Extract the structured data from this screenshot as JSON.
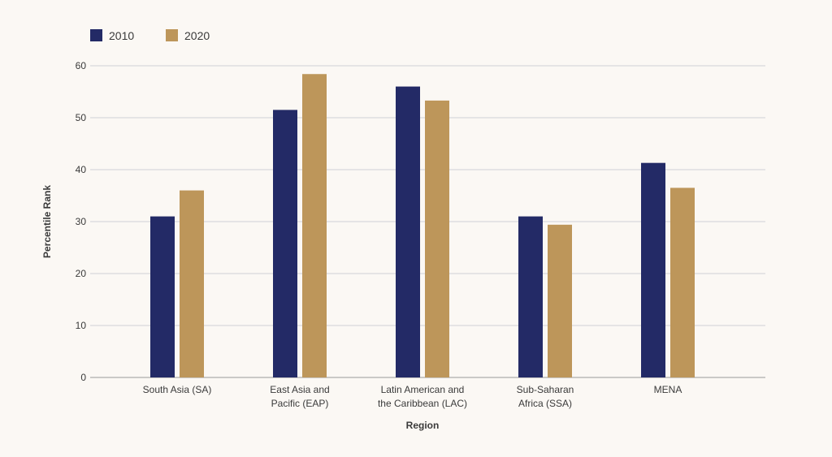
{
  "chart_data": {
    "type": "bar",
    "title": "",
    "xlabel": "Region",
    "ylabel": "Percentile Rank",
    "ylim": [
      0,
      60
    ],
    "yticks": [
      0,
      10,
      20,
      30,
      40,
      50,
      60
    ],
    "grid": true,
    "legend_position": "top-left",
    "categories": [
      [
        "South Asia (SA)"
      ],
      [
        "East Asia and",
        "Pacific (EAP)"
      ],
      [
        "Latin American and",
        "the Caribbean (LAC)"
      ],
      [
        "Sub-Saharan",
        "Africa (SSA)"
      ],
      [
        "MENA"
      ]
    ],
    "series": [
      {
        "name": "2010",
        "color": "#232a66",
        "values": [
          31,
          51.5,
          56,
          31,
          41.3
        ]
      },
      {
        "name": "2020",
        "color": "#bd965a",
        "values": [
          36,
          58.4,
          53.3,
          29.4,
          36.5
        ]
      }
    ],
    "colors": {
      "background": "#fbf8f4",
      "grid": "#cfcfd6",
      "axis": "#9a9a9a",
      "text": "#3a3a3a"
    }
  }
}
